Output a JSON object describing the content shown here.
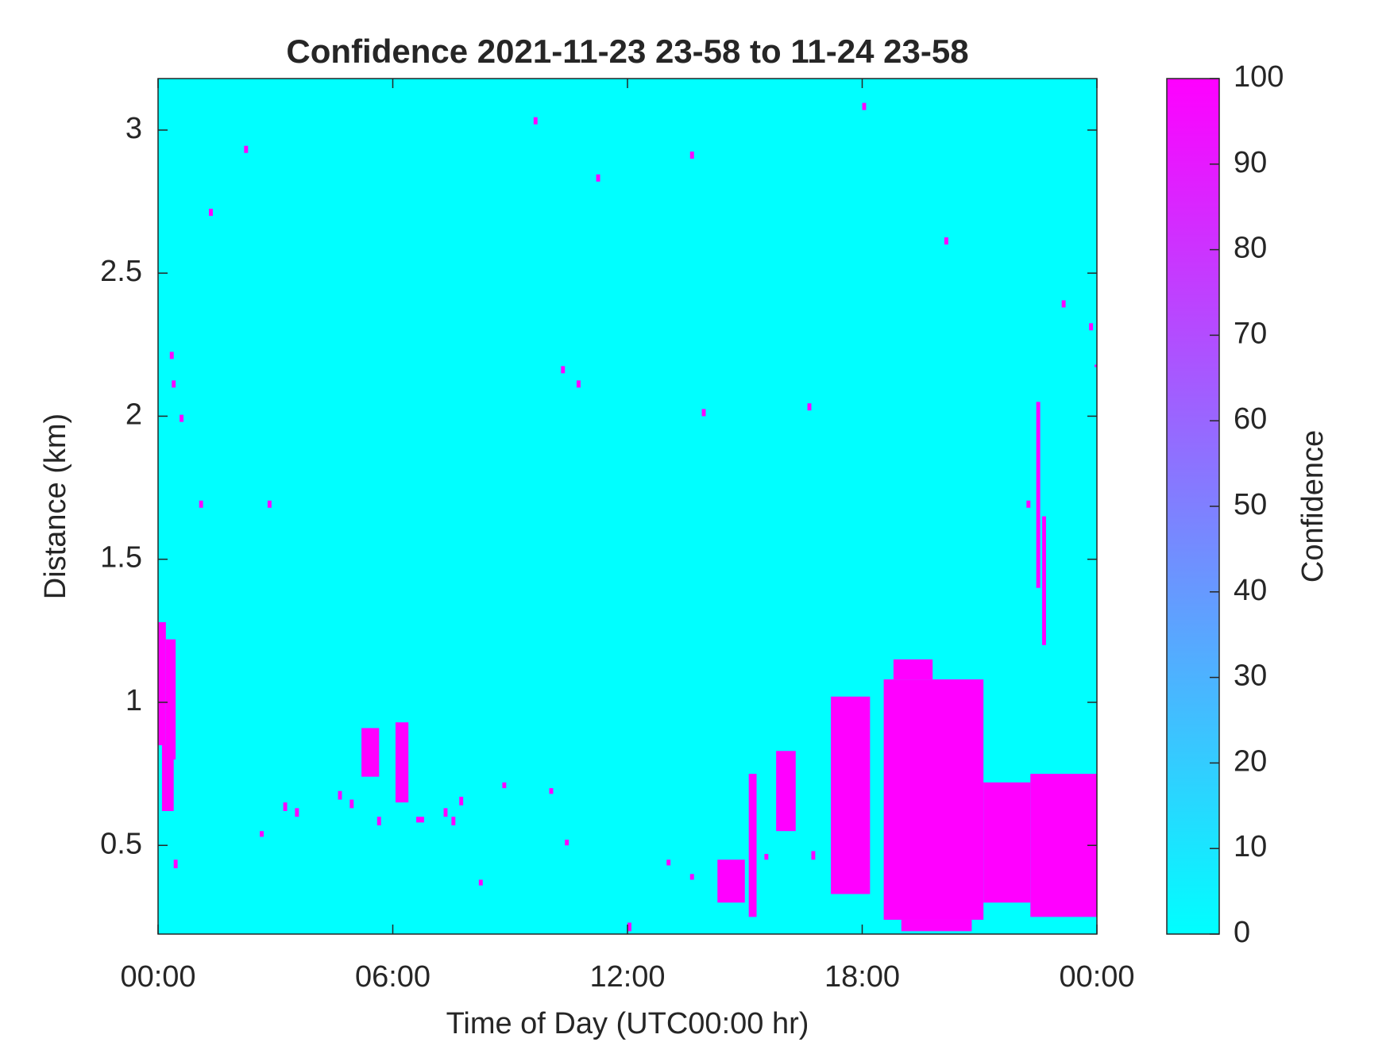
{
  "chart_data": {
    "type": "heatmap",
    "title": "Confidence 2021-11-23 23-58 to 11-24 23-58",
    "xlabel": "Time of Day (UTC00:00 hr)",
    "ylabel": "Distance (km)",
    "xlim": [
      0,
      24
    ],
    "xticks": [
      {
        "value": 0,
        "label": "00:00"
      },
      {
        "value": 6,
        "label": "06:00"
      },
      {
        "value": 12,
        "label": "12:00"
      },
      {
        "value": 18,
        "label": "18:00"
      },
      {
        "value": 24,
        "label": "00:00"
      }
    ],
    "ylim": [
      0.19,
      3.18
    ],
    "yticks": [
      0.5,
      1,
      1.5,
      2,
      2.5,
      3
    ],
    "colormap": [
      "#00ffff",
      "#ff00ff"
    ],
    "colorbar": {
      "label": "Confidence",
      "lim": [
        0,
        100
      ],
      "ticks": [
        0,
        10,
        20,
        30,
        40,
        50,
        60,
        70,
        80,
        90,
        100
      ]
    },
    "x": [
      [
        0,
        0.2
      ],
      [
        0.2,
        0.45
      ],
      [
        0.1,
        0.4
      ],
      [
        5.2,
        5.65
      ],
      [
        6.07,
        6.4
      ],
      [
        3.2,
        3.3
      ],
      [
        3.5,
        3.6
      ],
      [
        4.6,
        4.7
      ],
      [
        4.9,
        5.0
      ],
      [
        5.6,
        5.7
      ],
      [
        6.6,
        6.8
      ],
      [
        7.3,
        7.4
      ],
      [
        7.5,
        7.6
      ],
      [
        7.7,
        7.8
      ],
      [
        8.8,
        8.9
      ],
      [
        10.0,
        10.1
      ],
      [
        10.4,
        10.5
      ],
      [
        0.4,
        0.5
      ],
      [
        2.6,
        2.7
      ],
      [
        8.2,
        8.3
      ],
      [
        15.8,
        16.3
      ],
      [
        17.2,
        18.2
      ],
      [
        18.55,
        21.1
      ],
      [
        18.8,
        19.8
      ],
      [
        21.1,
        22.3
      ],
      [
        22.3,
        24
      ],
      [
        22.45,
        22.55
      ],
      [
        22.6,
        22.7
      ],
      [
        14.3,
        15.0
      ],
      [
        15.1,
        15.3
      ],
      [
        13.0,
        13.1
      ],
      [
        13.6,
        13.7
      ],
      [
        15.5,
        15.6
      ],
      [
        16.7,
        16.8
      ],
      [
        12.0,
        12.1
      ],
      [
        19.0,
        20.8
      ],
      [
        2.2,
        2.3
      ],
      [
        1.3,
        1.4
      ],
      [
        9.6,
        9.7
      ],
      [
        11.2,
        11.3
      ],
      [
        13.6,
        13.7
      ],
      [
        18.0,
        18.1
      ],
      [
        20.1,
        20.2
      ],
      [
        23.1,
        23.2
      ],
      [
        23.8,
        23.9
      ],
      [
        10.3,
        10.4
      ],
      [
        10.7,
        10.8
      ],
      [
        0.3,
        0.4
      ],
      [
        0.55,
        0.65
      ],
      [
        13.9,
        14.0
      ],
      [
        16.6,
        16.7
      ],
      [
        1.05,
        1.15
      ],
      [
        2.8,
        2.9
      ],
      [
        22.2,
        22.3
      ],
      [
        0.35,
        0.45
      ],
      [
        24.0,
        24.0
      ]
    ],
    "y": [
      [
        0.85,
        1.28
      ],
      [
        0.8,
        1.22
      ],
      [
        0.62,
        0.85
      ],
      [
        0.74,
        0.91
      ],
      [
        0.65,
        0.93
      ],
      [
        0.62,
        0.65
      ],
      [
        0.6,
        0.63
      ],
      [
        0.66,
        0.69
      ],
      [
        0.63,
        0.66
      ],
      [
        0.57,
        0.6
      ],
      [
        0.58,
        0.6
      ],
      [
        0.6,
        0.63
      ],
      [
        0.57,
        0.6
      ],
      [
        0.64,
        0.67
      ],
      [
        0.7,
        0.72
      ],
      [
        0.68,
        0.7
      ],
      [
        0.5,
        0.52
      ],
      [
        0.42,
        0.45
      ],
      [
        0.53,
        0.55
      ],
      [
        0.36,
        0.38
      ],
      [
        0.55,
        0.83
      ],
      [
        0.33,
        1.02
      ],
      [
        0.24,
        1.08
      ],
      [
        1.08,
        1.15
      ],
      [
        0.3,
        0.72
      ],
      [
        0.25,
        0.75
      ],
      [
        1.4,
        2.05
      ],
      [
        1.2,
        1.65
      ],
      [
        0.3,
        0.45
      ],
      [
        0.25,
        0.75
      ],
      [
        0.43,
        0.45
      ],
      [
        0.38,
        0.4
      ],
      [
        0.45,
        0.47
      ],
      [
        0.45,
        0.48
      ],
      [
        0.2,
        0.23
      ],
      [
        0.2,
        0.24
      ],
      [
        2.92,
        2.945
      ],
      [
        2.7,
        2.725
      ],
      [
        3.02,
        3.045
      ],
      [
        2.82,
        2.845
      ],
      [
        2.9,
        2.925
      ],
      [
        3.07,
        3.095
      ],
      [
        2.6,
        2.625
      ],
      [
        2.38,
        2.405
      ],
      [
        2.3,
        2.325
      ],
      [
        2.15,
        2.175
      ],
      [
        2.1,
        2.125
      ],
      [
        2.2,
        2.225
      ],
      [
        1.98,
        2.005
      ],
      [
        2.0,
        2.025
      ],
      [
        2.02,
        2.045
      ],
      [
        1.68,
        1.705
      ],
      [
        1.68,
        1.705
      ],
      [
        1.68,
        1.705
      ],
      [
        2.1,
        2.125
      ],
      [
        2.18,
        2.18
      ]
    ],
    "values": [
      100,
      100,
      100,
      100,
      100,
      100,
      100,
      100,
      100,
      100,
      100,
      100,
      100,
      100,
      100,
      100,
      100,
      100,
      100,
      100,
      100,
      100,
      100,
      100,
      100,
      100,
      100,
      100,
      100,
      100,
      100,
      100,
      100,
      100,
      100,
      100,
      100,
      100,
      100,
      100,
      100,
      100,
      100,
      100,
      100,
      100,
      100,
      100,
      100,
      100,
      100,
      100,
      100,
      100,
      100,
      100
    ]
  }
}
